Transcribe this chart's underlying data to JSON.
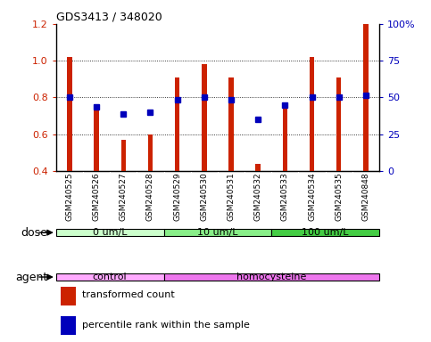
{
  "title": "GDS3413 / 348020",
  "samples": [
    "GSM240525",
    "GSM240526",
    "GSM240527",
    "GSM240528",
    "GSM240529",
    "GSM240530",
    "GSM240531",
    "GSM240532",
    "GSM240533",
    "GSM240534",
    "GSM240535",
    "GSM240848"
  ],
  "transformed_count": [
    1.02,
    0.76,
    0.57,
    0.6,
    0.91,
    0.98,
    0.91,
    0.44,
    0.77,
    1.02,
    0.91,
    1.2
  ],
  "percentile_rank_left": [
    0.8,
    0.75,
    0.71,
    0.72,
    0.79,
    0.8,
    0.79,
    0.68,
    0.76,
    0.8,
    0.8,
    0.81
  ],
  "ylim": [
    0.4,
    1.2
  ],
  "yticks": [
    0.4,
    0.6,
    0.8,
    1.0,
    1.2
  ],
  "y2ticks": [
    0,
    25,
    50,
    75,
    100
  ],
  "y2ticklabels": [
    "0",
    "25",
    "50",
    "75",
    "100%"
  ],
  "bar_color": "#cc2200",
  "dot_color": "#0000bb",
  "bar_width": 0.18,
  "dot_size": 5,
  "dose_groups": [
    {
      "label": "0 um/L",
      "start": 0,
      "end": 4,
      "color": "#ccffcc"
    },
    {
      "label": "10 um/L",
      "start": 4,
      "end": 8,
      "color": "#88ee88"
    },
    {
      "label": "100 um/L",
      "start": 8,
      "end": 12,
      "color": "#44cc44"
    }
  ],
  "agent_groups": [
    {
      "label": "control",
      "start": 0,
      "end": 4,
      "color": "#ffaaff"
    },
    {
      "label": "homocysteine",
      "start": 4,
      "end": 12,
      "color": "#ee77ee"
    }
  ],
  "dose_label": "dose",
  "agent_label": "agent",
  "legend_items": [
    {
      "color": "#cc2200",
      "label": "transformed count"
    },
    {
      "color": "#0000bb",
      "label": "percentile rank within the sample"
    }
  ],
  "tick_color_left": "#cc2200",
  "tick_color_right": "#0000bb",
  "sample_box_color": "#cccccc",
  "bg_color": "#ffffff"
}
